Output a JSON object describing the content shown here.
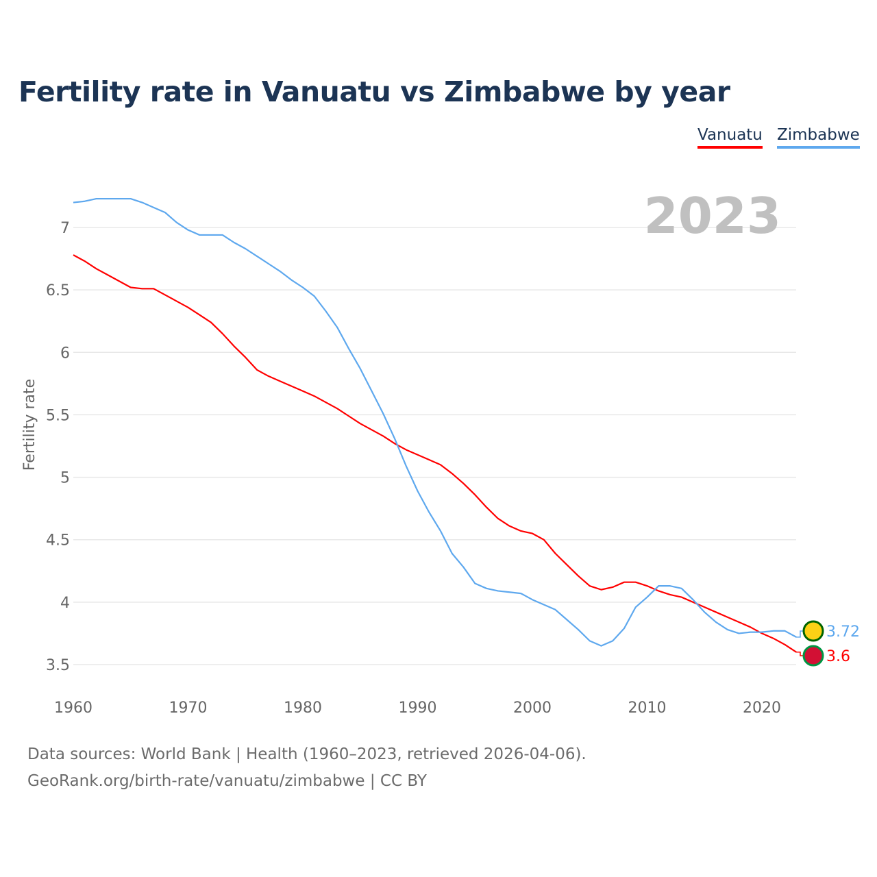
{
  "chart_data": {
    "type": "line",
    "title": "Fertility rate in Vanuatu vs Zimbabwe by year",
    "xlabel": "",
    "ylabel": "Fertility rate",
    "xlim": [
      1960,
      2023
    ],
    "ylim": [
      3.3,
      7.3
    ],
    "x_ticks": [
      1960,
      1970,
      1980,
      1990,
      2000,
      2010,
      2020
    ],
    "y_ticks": [
      3.5,
      4,
      4.5,
      5,
      5.5,
      6,
      6.5,
      7
    ],
    "grid": true,
    "legend_placement": "top-right",
    "year_label": "2023",
    "x": [
      1960,
      1961,
      1962,
      1963,
      1964,
      1965,
      1966,
      1967,
      1968,
      1969,
      1970,
      1971,
      1972,
      1973,
      1974,
      1975,
      1976,
      1977,
      1978,
      1979,
      1980,
      1981,
      1982,
      1983,
      1984,
      1985,
      1986,
      1987,
      1988,
      1989,
      1990,
      1991,
      1992,
      1993,
      1994,
      1995,
      1996,
      1997,
      1998,
      1999,
      2000,
      2001,
      2002,
      2003,
      2004,
      2005,
      2006,
      2007,
      2008,
      2009,
      2010,
      2011,
      2012,
      2013,
      2014,
      2015,
      2016,
      2017,
      2018,
      2019,
      2020,
      2021,
      2022,
      2023
    ],
    "series": [
      {
        "name": "Vanuatu",
        "color": "#ff0000",
        "end_label": "3.6",
        "values": [
          6.78,
          6.73,
          6.67,
          6.62,
          6.57,
          6.52,
          6.51,
          6.51,
          6.46,
          6.41,
          6.36,
          6.3,
          6.24,
          6.15,
          6.05,
          5.96,
          5.86,
          5.81,
          5.77,
          5.73,
          5.69,
          5.65,
          5.6,
          5.55,
          5.49,
          5.43,
          5.38,
          5.33,
          5.27,
          5.22,
          5.18,
          5.14,
          5.1,
          5.03,
          4.95,
          4.86,
          4.76,
          4.67,
          4.61,
          4.57,
          4.55,
          4.5,
          4.39,
          4.3,
          4.21,
          4.13,
          4.1,
          4.12,
          4.16,
          4.16,
          4.13,
          4.09,
          4.06,
          4.04,
          4.0,
          3.96,
          3.92,
          3.88,
          3.84,
          3.8,
          3.75,
          3.71,
          3.66,
          3.6
        ]
      },
      {
        "name": "Zimbabwe",
        "color": "#5ea8ee",
        "end_label": "3.72",
        "values": [
          7.2,
          7.21,
          7.23,
          7.23,
          7.23,
          7.23,
          7.2,
          7.16,
          7.12,
          7.04,
          6.98,
          6.94,
          6.94,
          6.94,
          6.88,
          6.83,
          6.77,
          6.71,
          6.65,
          6.58,
          6.52,
          6.45,
          6.33,
          6.2,
          6.03,
          5.87,
          5.69,
          5.51,
          5.31,
          5.09,
          4.89,
          4.72,
          4.57,
          4.39,
          4.28,
          4.15,
          4.11,
          4.09,
          4.08,
          4.07,
          4.02,
          3.98,
          3.94,
          3.86,
          3.78,
          3.69,
          3.65,
          3.69,
          3.79,
          3.96,
          4.04,
          4.13,
          4.13,
          4.11,
          4.02,
          3.92,
          3.84,
          3.78,
          3.75,
          3.76,
          3.76,
          3.77,
          3.77,
          3.72
        ]
      }
    ]
  },
  "footer": {
    "line1": "Data sources: World Bank | Health (1960–2023, retrieved 2026-04-06).",
    "line2": "GeoRank.org/birth-rate/vanuatu/zimbabwe | CC BY"
  }
}
